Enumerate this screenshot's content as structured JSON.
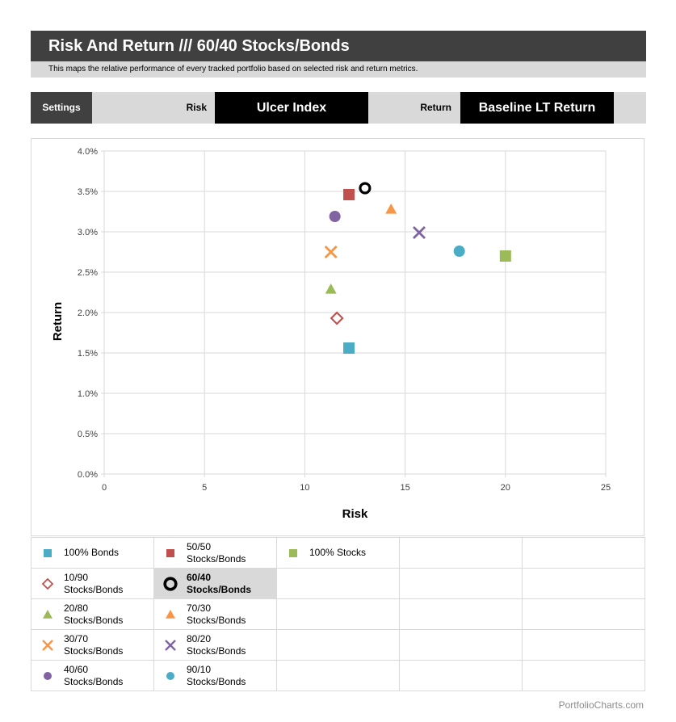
{
  "header": {
    "title": "Risk And Return /// 60/40 Stocks/Bonds",
    "subtitle": "This maps the relative performance of every tracked portfolio based on selected risk and return metrics."
  },
  "settings": {
    "label": "Settings",
    "risk_label": "Risk",
    "risk_value": "Ulcer Index",
    "return_label": "Return",
    "return_value": "Baseline LT Return"
  },
  "colors": {
    "dark": "#404040",
    "light_gray": "#d9d9d9",
    "teal": "#4bacc6",
    "red": "#c0504d",
    "green": "#9bbb59",
    "orange": "#f79646",
    "purple": "#8064a2",
    "black": "#000000"
  },
  "chart_data": {
    "type": "scatter",
    "title": "Risk And Return /// 60/40 Stocks/Bonds",
    "xlabel": "Risk",
    "ylabel": "Return",
    "xlim": [
      0,
      25
    ],
    "ylim": [
      0,
      0.04
    ],
    "x_ticks": [
      "0",
      "5",
      "10",
      "15",
      "20",
      "25"
    ],
    "y_ticks": [
      "0.0%",
      "0.5%",
      "1.0%",
      "1.5%",
      "2.0%",
      "2.5%",
      "3.0%",
      "3.5%",
      "4.0%"
    ],
    "grid": true,
    "legend_position": "bottom",
    "series": [
      {
        "name": "100% Bonds",
        "x": 12.2,
        "y": 0.0156,
        "marker": "square",
        "color": "#4bacc6"
      },
      {
        "name": "50/50 Stocks/Bonds",
        "x": 12.2,
        "y": 0.0346,
        "marker": "square",
        "color": "#c0504d"
      },
      {
        "name": "100% Stocks",
        "x": 20.0,
        "y": 0.027,
        "marker": "square",
        "color": "#9bbb59"
      },
      {
        "name": "10/90 Stocks/Bonds",
        "x": 11.6,
        "y": 0.0193,
        "marker": "diamond-open",
        "color": "#c0504d"
      },
      {
        "name": "60/40 Stocks/Bonds",
        "x": 13.0,
        "y": 0.0354,
        "marker": "circle-open",
        "color": "#000000",
        "selected": true
      },
      {
        "name": "20/80 Stocks/Bonds",
        "x": 11.3,
        "y": 0.0229,
        "marker": "triangle",
        "color": "#9bbb59"
      },
      {
        "name": "70/30 Stocks/Bonds",
        "x": 14.3,
        "y": 0.0328,
        "marker": "triangle",
        "color": "#f79646"
      },
      {
        "name": "30/70 Stocks/Bonds",
        "x": 11.3,
        "y": 0.0275,
        "marker": "x",
        "color": "#f79646"
      },
      {
        "name": "80/20 Stocks/Bonds",
        "x": 15.7,
        "y": 0.0299,
        "marker": "x",
        "color": "#8064a2"
      },
      {
        "name": "40/60 Stocks/Bonds",
        "x": 11.5,
        "y": 0.0319,
        "marker": "circle",
        "color": "#8064a2"
      },
      {
        "name": "90/10 Stocks/Bonds",
        "x": 17.7,
        "y": 0.0276,
        "marker": "circle",
        "color": "#4bacc6"
      }
    ]
  },
  "legend": {
    "rows": [
      [
        {
          "line1": "100% Bonds",
          "line2": "",
          "marker": "square",
          "color": "#4bacc6"
        },
        {
          "line1": "50/50",
          "line2": "Stocks/Bonds",
          "marker": "square",
          "color": "#c0504d"
        },
        {
          "line1": "100% Stocks",
          "line2": "",
          "marker": "square",
          "color": "#9bbb59"
        },
        null,
        null
      ],
      [
        {
          "line1": "10/90",
          "line2": "Stocks/Bonds",
          "marker": "diamond-open",
          "color": "#c0504d"
        },
        {
          "line1": "60/40",
          "line2": "Stocks/Bonds",
          "marker": "circle-open",
          "color": "#000000",
          "selected": true
        },
        null,
        null,
        null
      ],
      [
        {
          "line1": "20/80",
          "line2": "Stocks/Bonds",
          "marker": "triangle",
          "color": "#9bbb59"
        },
        {
          "line1": "70/30",
          "line2": "Stocks/Bonds",
          "marker": "triangle",
          "color": "#f79646"
        },
        null,
        null,
        null
      ],
      [
        {
          "line1": "30/70",
          "line2": "Stocks/Bonds",
          "marker": "x",
          "color": "#f79646"
        },
        {
          "line1": "80/20",
          "line2": "Stocks/Bonds",
          "marker": "x",
          "color": "#8064a2"
        },
        null,
        null,
        null
      ],
      [
        {
          "line1": "40/60",
          "line2": "Stocks/Bonds",
          "marker": "circle",
          "color": "#8064a2"
        },
        {
          "line1": "90/10",
          "line2": "Stocks/Bonds",
          "marker": "circle",
          "color": "#4bacc6"
        },
        null,
        null,
        null
      ]
    ]
  },
  "footer": {
    "brand": "PortfolioCharts.com"
  }
}
